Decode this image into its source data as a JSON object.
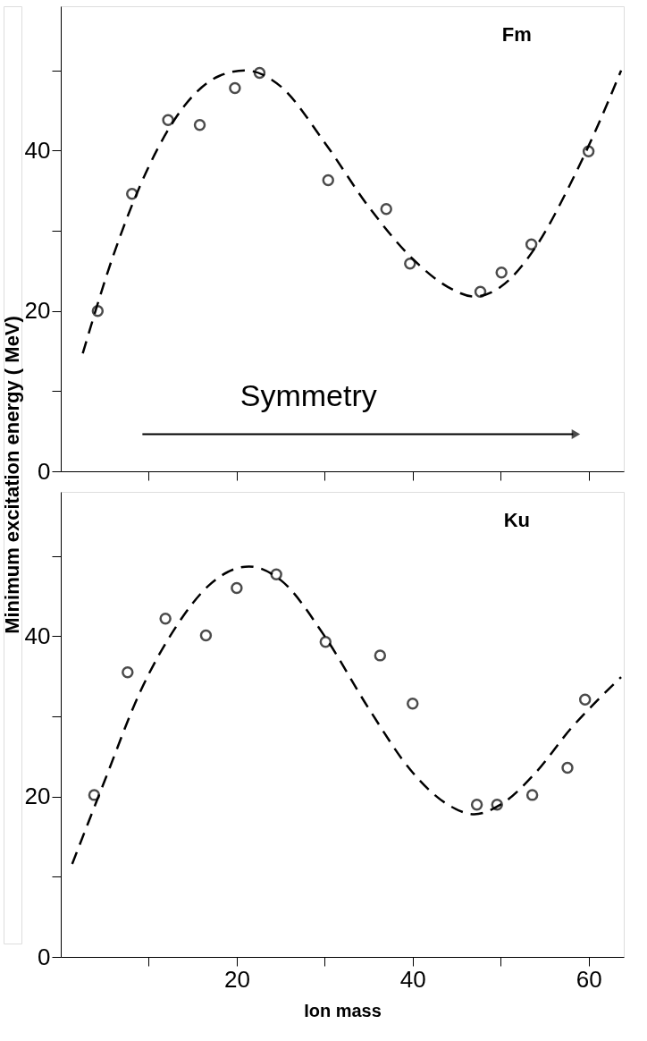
{
  "chart_data": [
    {
      "type": "scatter",
      "title": "Fm",
      "ylabel": "Minimum excitation energy ( MeV)",
      "annotations": [
        "Symmetry"
      ],
      "tick_labels": "y",
      "grid": false,
      "xlim": [
        0,
        64
      ],
      "ylim": [
        0,
        58
      ],
      "xticks": [
        {
          "value": 10,
          "label": null
        },
        {
          "value": 20,
          "label": null
        },
        {
          "value": 30,
          "label": null
        },
        {
          "value": 40,
          "label": null
        },
        {
          "value": 50,
          "label": null
        },
        {
          "value": 60,
          "label": null
        }
      ],
      "yticks": [
        0,
        {
          "value": 10,
          "label": null
        },
        20,
        {
          "value": 30,
          "label": null
        },
        40,
        {
          "value": 50,
          "label": null
        }
      ],
      "series": [
        {
          "type": "scatter",
          "color": "#000000",
          "marker": "circle",
          "x": [
            4.2,
            8.1,
            12.2,
            15.8,
            19.8,
            22.6,
            30.4,
            37.0,
            39.7,
            47.7,
            50.1,
            53.5,
            60.0
          ],
          "values": [
            20.0,
            34.6,
            43.8,
            43.2,
            47.8,
            49.7,
            36.3,
            32.7,
            25.9,
            22.4,
            24.8,
            28.3,
            39.9
          ]
        },
        {
          "type": "line",
          "color": "#000000",
          "line_style": "dashed",
          "marker": "none",
          "x": [
            2.5,
            6,
            10,
            14,
            18,
            21,
            25,
            30,
            35,
            40,
            44,
            47,
            50,
            54,
            58,
            61,
            63.7
          ],
          "values": [
            14.7,
            27,
            38,
            45.5,
            49.3,
            50,
            48,
            41,
            33,
            26.5,
            23,
            21.8,
            23,
            28,
            36,
            43,
            50
          ]
        }
      ]
    },
    {
      "type": "scatter",
      "title": "Ku",
      "xlabel": "Ion   mass",
      "grid": false,
      "xlim": [
        0,
        64
      ],
      "ylim": [
        0,
        58
      ],
      "xticks": [
        {
          "value": 10,
          "label": null
        },
        20,
        {
          "value": 30,
          "label": null
        },
        40,
        {
          "value": 50,
          "label": null
        },
        60
      ],
      "yticks": [
        0,
        {
          "value": 10,
          "label": null
        },
        20,
        {
          "value": 30,
          "label": null
        },
        40,
        {
          "value": 50,
          "label": null
        }
      ],
      "series": [
        {
          "type": "scatter",
          "color": "#000000",
          "marker": "circle",
          "x": [
            3.8,
            7.6,
            11.9,
            16.5,
            20.0,
            24.5,
            30.1,
            36.3,
            40.0,
            47.3,
            49.6,
            53.6,
            57.6,
            59.6
          ],
          "values": [
            20.2,
            35.5,
            42.2,
            40.1,
            46.0,
            47.7,
            39.3,
            37.6,
            31.6,
            19.0,
            19.0,
            20.2,
            23.6,
            32.1
          ]
        },
        {
          "type": "line",
          "color": "#000000",
          "line_style": "dashed",
          "marker": "none",
          "x": [
            1.3,
            5,
            9,
            13,
            17,
            21.4,
            25,
            30,
            35,
            40,
            44,
            47,
            50,
            54,
            58,
            61,
            63.7
          ],
          "values": [
            11.6,
            22,
            33,
            41,
            46.5,
            48.7,
            47,
            40,
            31,
            23,
            19,
            17.8,
            19,
            23,
            28.5,
            32,
            34.9
          ]
        }
      ]
    }
  ]
}
